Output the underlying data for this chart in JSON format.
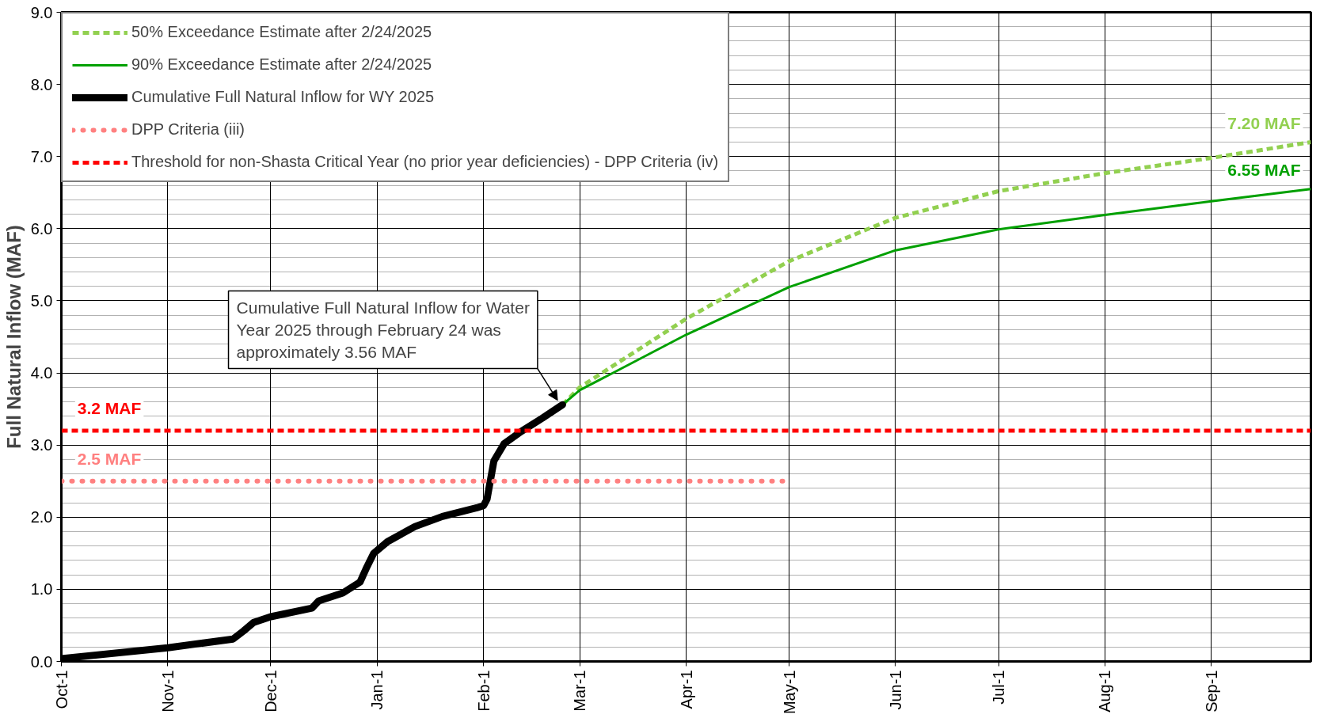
{
  "chart_data": {
    "type": "line",
    "ylabel": "Full Natural Inflow (MAF)",
    "xlim": [
      "2024-10-01",
      "2025-09-30"
    ],
    "xticks": [
      {
        "value": "2024-10-01",
        "label": "Oct-1"
      },
      {
        "value": "2024-11-01",
        "label": "Nov-1"
      },
      {
        "value": "2024-12-01",
        "label": "Dec-1"
      },
      {
        "value": "2025-01-01",
        "label": "Jan-1"
      },
      {
        "value": "2025-02-01",
        "label": "Feb-1"
      },
      {
        "value": "2025-03-01",
        "label": "Mar-1"
      },
      {
        "value": "2025-04-01",
        "label": "Apr-1"
      },
      {
        "value": "2025-05-01",
        "label": "May-1"
      },
      {
        "value": "2025-06-01",
        "label": "Jun-1"
      },
      {
        "value": "2025-07-01",
        "label": "Jul-1"
      },
      {
        "value": "2025-08-01",
        "label": "Aug-1"
      },
      {
        "value": "2025-09-01",
        "label": "Sep-1"
      }
    ],
    "ylim": [
      0,
      9
    ],
    "yticks": [
      {
        "value": 0,
        "label": "0.0"
      },
      {
        "value": 1,
        "label": "1.0"
      },
      {
        "value": 2,
        "label": "2.0"
      },
      {
        "value": 3,
        "label": "3.0"
      },
      {
        "value": 4,
        "label": "4.0"
      },
      {
        "value": 5,
        "label": "5.0"
      },
      {
        "value": 6,
        "label": "6.0"
      },
      {
        "value": 7,
        "label": "7.0"
      },
      {
        "value": 8,
        "label": "8.0"
      },
      {
        "value": 9,
        "label": "9.0"
      }
    ],
    "grid": true,
    "legend": "top left",
    "marker": "none",
    "series": [
      {
        "name": "50% Exceedance Estimate after 2/24/2025",
        "color": "#92d050",
        "line_style": "dashed",
        "x": [
          "2025-02-24",
          "2025-03-01",
          "2025-04-01",
          "2025-05-01",
          "2025-06-01",
          "2025-07-01",
          "2025-08-01",
          "2025-09-01",
          "2025-09-30"
        ],
        "values": [
          3.56,
          3.8,
          4.75,
          5.55,
          6.15,
          6.52,
          6.77,
          6.98,
          7.2
        ]
      },
      {
        "name": "90% Exceedance Estimate after 2/24/2025",
        "color": "#00a000",
        "line_style": "solid",
        "x": [
          "2025-02-24",
          "2025-03-01",
          "2025-04-01",
          "2025-05-01",
          "2025-06-01",
          "2025-07-01",
          "2025-08-01",
          "2025-09-01",
          "2025-09-30"
        ],
        "values": [
          3.56,
          3.76,
          4.53,
          5.19,
          5.7,
          5.99,
          6.19,
          6.38,
          6.55
        ]
      },
      {
        "name": "Cumulative Full Natural Inflow for WY 2025",
        "color": "#000000",
        "line_style": "solid",
        "x": [
          "2024-10-01",
          "2024-11-01",
          "2024-11-20",
          "2024-11-23",
          "2024-11-26",
          "2024-12-01",
          "2024-12-13",
          "2024-12-15",
          "2024-12-22",
          "2024-12-27",
          "2024-12-29",
          "2024-12-31",
          "2025-01-04",
          "2025-01-12",
          "2025-01-20",
          "2025-01-30",
          "2025-02-01",
          "2025-02-02",
          "2025-02-04",
          "2025-02-07",
          "2025-02-12",
          "2025-02-18",
          "2025-02-24"
        ],
        "values": [
          0.04,
          0.19,
          0.31,
          0.42,
          0.54,
          0.62,
          0.74,
          0.84,
          0.95,
          1.1,
          1.31,
          1.5,
          1.66,
          1.87,
          2.01,
          2.13,
          2.16,
          2.25,
          2.78,
          3.02,
          3.19,
          3.37,
          3.56
        ]
      },
      {
        "name": "DPP Criteria (iii)",
        "color": "#ff8080",
        "line_style": "dotted",
        "x": [
          "2024-10-01",
          "2025-04-30"
        ],
        "values": [
          2.5,
          2.5
        ]
      },
      {
        "name": "Threshold for non-Shasta Critical Year (no prior year deficiencies) - DPP Criteria (iv)",
        "color": "#ff0000",
        "line_style": "dashed",
        "x": [
          "2024-10-01",
          "2025-09-30"
        ],
        "values": [
          3.2,
          3.2
        ]
      }
    ],
    "annotations": [
      "Cumulative Full Natural Inflow for Water Year 2025 through February 24 was approximately 3.56 MAF",
      {
        "text": "3.2 MAF",
        "x": "2024-10-05",
        "y": 3.2
      },
      {
        "text": "2.5 MAF",
        "x": "2024-10-05",
        "y": 2.5
      },
      {
        "text": "7.20 MAF",
        "x": "2025-09-30",
        "y": 7.2
      },
      {
        "text": "6.55 MAF",
        "x": "2025-09-30",
        "y": 6.55
      }
    ]
  }
}
